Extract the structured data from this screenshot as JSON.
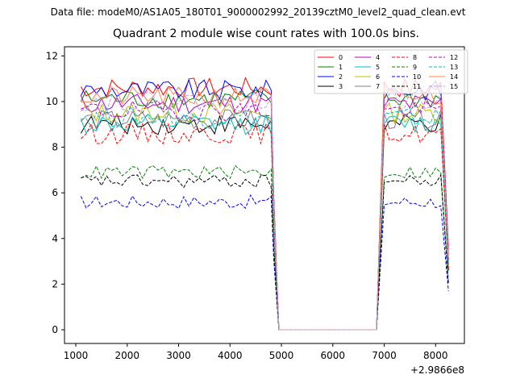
{
  "header": {
    "suptitle": "Data file: modeM0/AS1A05_180T01_9000002992_20139cztM0_level2_quad_clean.evt",
    "title": "Quadrant 2 module wise count rates with 100.0s bins."
  },
  "chart_data": {
    "type": "line",
    "title": "Quadrant 2 module wise count rates with 100.0s bins.",
    "xlabel": "",
    "ylabel": "",
    "x_offset_label": "+2.9866e8",
    "xlim": [
      780,
      8560
    ],
    "ylim": [
      -0.6,
      12.4
    ],
    "xticks": [
      1000,
      2000,
      3000,
      4000,
      5000,
      6000,
      7000,
      8000
    ],
    "yticks": [
      0,
      2,
      4,
      6,
      8,
      10,
      12
    ],
    "grid": false,
    "legend": {
      "placement": "top-right",
      "columns": 4
    },
    "segments": {
      "active1_start": 1100,
      "active1_end": 4800,
      "gap_end_1": 4950,
      "zero_start": 4950,
      "zero_end": 6850,
      "rise_start": 6850,
      "active2_start": 7000,
      "active2_end": 8100,
      "final_x": 8250,
      "step": 100
    },
    "series": [
      {
        "name": "0",
        "color": "#ff0000",
        "dash": "solid",
        "level": 10.6,
        "final": 3.6
      },
      {
        "name": "1",
        "color": "#008000",
        "dash": "solid",
        "level": 10.1,
        "final": 3.2
      },
      {
        "name": "2",
        "color": "#0000ff",
        "dash": "solid",
        "level": 10.5,
        "final": 3.4
      },
      {
        "name": "3",
        "color": "#000000",
        "dash": "solid",
        "level": 9.0,
        "final": 2.6
      },
      {
        "name": "4",
        "color": "#bf00bf",
        "dash": "solid",
        "level": 9.9,
        "final": 3.1
      },
      {
        "name": "5",
        "color": "#00bfbf",
        "dash": "solid",
        "level": 9.0,
        "final": 2.8
      },
      {
        "name": "6",
        "color": "#bfbf00",
        "dash": "solid",
        "level": 9.5,
        "final": 3.0
      },
      {
        "name": "7",
        "color": "#808080",
        "dash": "solid",
        "level": 9.2,
        "final": 2.9
      },
      {
        "name": "8",
        "color": "#ff0000",
        "dash": "dashed",
        "level": 8.6,
        "final": 2.7
      },
      {
        "name": "9",
        "color": "#008000",
        "dash": "dashed",
        "level": 6.9,
        "final": 2.1
      },
      {
        "name": "10",
        "color": "#0000ff",
        "dash": "dashed",
        "level": 5.6,
        "final": 1.7
      },
      {
        "name": "11",
        "color": "#000000",
        "dash": "dashed",
        "level": 6.5,
        "final": 2.0
      },
      {
        "name": "12",
        "color": "#bf00bf",
        "dash": "dashed",
        "level": 9.6,
        "final": 3.0
      },
      {
        "name": "13",
        "color": "#00bfbf",
        "dash": "dashed",
        "level": 9.3,
        "final": 2.9
      },
      {
        "name": "14",
        "color": "#ff7f50",
        "dash": "solid",
        "level": 10.2,
        "final": 3.3
      },
      {
        "name": "15",
        "color": "#b0a0e0",
        "dash": "dashed",
        "level": 10.0,
        "final": 3.2
      }
    ]
  }
}
